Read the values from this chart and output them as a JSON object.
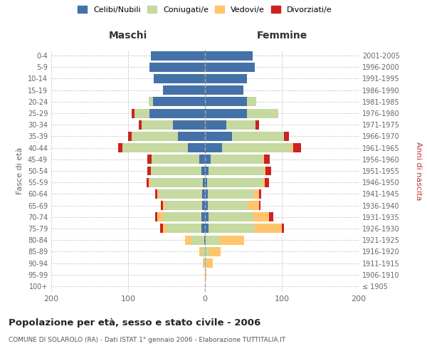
{
  "age_groups": [
    "100+",
    "95-99",
    "90-94",
    "85-89",
    "80-84",
    "75-79",
    "70-74",
    "65-69",
    "60-64",
    "55-59",
    "50-54",
    "45-49",
    "40-44",
    "35-39",
    "30-34",
    "25-29",
    "20-24",
    "15-19",
    "10-14",
    "5-9",
    "0-4"
  ],
  "birth_years": [
    "≤ 1905",
    "1906-1910",
    "1911-1915",
    "1916-1920",
    "1921-1925",
    "1926-1930",
    "1931-1935",
    "1936-1940",
    "1941-1945",
    "1946-1950",
    "1951-1955",
    "1956-1960",
    "1961-1965",
    "1966-1970",
    "1971-1975",
    "1976-1980",
    "1981-1985",
    "1986-1990",
    "1991-1995",
    "1996-2000",
    "2001-2005"
  ],
  "males": {
    "celibi": [
      0,
      0,
      0,
      0,
      1,
      5,
      5,
      4,
      4,
      3,
      5,
      7,
      22,
      35,
      42,
      72,
      68,
      55,
      67,
      72,
      70
    ],
    "coniugati": [
      0,
      0,
      2,
      4,
      17,
      45,
      50,
      48,
      56,
      68,
      65,
      62,
      85,
      60,
      40,
      20,
      5,
      0,
      0,
      0,
      0
    ],
    "vedovi": [
      0,
      0,
      1,
      3,
      8,
      5,
      7,
      3,
      2,
      2,
      0,
      0,
      0,
      0,
      0,
      0,
      0,
      0,
      0,
      0,
      0
    ],
    "divorziati": [
      0,
      0,
      0,
      0,
      0,
      3,
      3,
      2,
      3,
      3,
      5,
      6,
      6,
      5,
      4,
      3,
      0,
      0,
      0,
      0,
      0
    ]
  },
  "females": {
    "nubili": [
      0,
      0,
      0,
      0,
      1,
      5,
      5,
      4,
      4,
      3,
      5,
      7,
      22,
      35,
      28,
      55,
      55,
      50,
      55,
      65,
      62
    ],
    "coniugate": [
      0,
      0,
      2,
      6,
      18,
      60,
      58,
      52,
      60,
      72,
      72,
      68,
      90,
      68,
      38,
      40,
      12,
      0,
      0,
      0,
      0
    ],
    "vedove": [
      0,
      2,
      8,
      14,
      32,
      35,
      20,
      14,
      6,
      3,
      2,
      2,
      3,
      0,
      0,
      0,
      0,
      0,
      0,
      0,
      0
    ],
    "divorziate": [
      0,
      0,
      0,
      0,
      0,
      3,
      6,
      2,
      3,
      5,
      7,
      7,
      10,
      6,
      4,
      0,
      0,
      0,
      0,
      0,
      0
    ]
  },
  "colors": {
    "celibi_nubili": "#4472a8",
    "coniugati": "#c5d9a0",
    "vedovi": "#ffc56b",
    "divorziati": "#cc2222"
  },
  "title": "Popolazione per età, sesso e stato civile - 2006",
  "subtitle": "COMUNE DI SOLAROLO (RA) - Dati ISTAT 1° gennaio 2006 - Elaborazione TUTTITALIA.IT",
  "xlabel_left": "Maschi",
  "xlabel_right": "Femmine",
  "ylabel_left": "Fasce di età",
  "ylabel_right": "Anni di nascita",
  "xlim": 200,
  "legend_labels": [
    "Celibi/Nubili",
    "Coniugati/e",
    "Vedovi/e",
    "Divorziati/e"
  ],
  "legend_marker_colors": [
    "#4472a8",
    "#c5d9a0",
    "#ffc56b",
    "#cc2222"
  ]
}
